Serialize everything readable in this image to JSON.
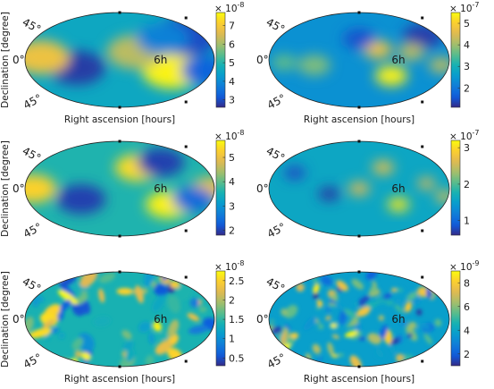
{
  "chart_data": [
    {
      "type": "heatmap",
      "projection": "mollweide",
      "xlabel": "Right ascension [hours]",
      "ylabel": "Declination [degree]",
      "annotations": [
        "45°",
        "0°",
        "6h",
        "45°"
      ],
      "colorbar": {
        "exponent_label": "× 10^-8",
        "ticks": [
          3,
          4,
          5,
          6,
          7
        ],
        "range": [
          2.6,
          7.7
        ]
      },
      "colormap": "parula",
      "blobs": [
        {
          "ra": 6.8,
          "dec": -20,
          "value": 7.6,
          "width": 0.32
        },
        {
          "ra": 2.0,
          "dec": 15,
          "value": 6.2,
          "width": 0.3
        },
        {
          "ra": 9.5,
          "dec": 45,
          "value": 3.0,
          "width": 0.35
        },
        {
          "ra": -5.5,
          "dec": -15,
          "value": 2.8,
          "width": 0.3
        },
        {
          "ra": -10,
          "dec": 5,
          "value": 6.8,
          "width": 0.3
        },
        {
          "ra": 11,
          "dec": -20,
          "value": 3.3,
          "width": 0.25
        },
        {
          "ra": 6,
          "dec": 40,
          "value": 3.8,
          "width": 0.28
        }
      ],
      "base": 4.6
    },
    {
      "type": "heatmap",
      "projection": "mollweide",
      "xlabel": "Right ascension [hours]",
      "ylabel": "",
      "annotations": [
        "45°",
        "0°",
        "6h",
        "45°"
      ],
      "colorbar": {
        "exponent_label": "× 10^-7",
        "ticks": [
          2,
          3,
          4,
          5
        ],
        "range": [
          1.1,
          5.5
        ]
      },
      "colormap": "parula",
      "blobs": [
        {
          "ra": 4.5,
          "dec": -30,
          "value": 5.4,
          "width": 0.18
        },
        {
          "ra": 2.5,
          "dec": 20,
          "value": 4.8,
          "width": 0.16
        },
        {
          "ra": 9.5,
          "dec": 45,
          "value": 1.3,
          "width": 0.22
        },
        {
          "ra": 7,
          "dec": 15,
          "value": 4.2,
          "width": 0.15
        },
        {
          "ra": -6,
          "dec": -10,
          "value": 3.8,
          "width": 0.18
        },
        {
          "ra": 11,
          "dec": -10,
          "value": 4.2,
          "width": 0.14
        },
        {
          "ra": -10,
          "dec": -5,
          "value": 3.6,
          "width": 0.14
        },
        {
          "ra": 0,
          "dec": 40,
          "value": 1.5,
          "width": 0.18
        }
      ],
      "base": 2.4
    },
    {
      "type": "heatmap",
      "projection": "mollweide",
      "xlabel": "",
      "ylabel": "Declination [degree]",
      "annotations": [
        "45°",
        "0°",
        "6h",
        "45°"
      ],
      "colorbar": {
        "exponent_label": "× 10^-8",
        "ticks": [
          2,
          3,
          4,
          5
        ],
        "range": [
          1.8,
          5.7
        ]
      },
      "colormap": "parula",
      "blobs": [
        {
          "ra": 6.5,
          "dec": -30,
          "value": 5.6,
          "width": 0.24
        },
        {
          "ra": 2.5,
          "dec": 40,
          "value": 5.4,
          "width": 0.24
        },
        {
          "ra": 6,
          "dec": 50,
          "value": 2.0,
          "width": 0.25
        },
        {
          "ra": -5,
          "dec": -20,
          "value": 2.0,
          "width": 0.26
        },
        {
          "ra": -11,
          "dec": 0,
          "value": 5.3,
          "width": 0.25
        },
        {
          "ra": 11.5,
          "dec": 0,
          "value": 5.0,
          "width": 0.2
        },
        {
          "ra": 9.5,
          "dec": -20,
          "value": 2.4,
          "width": 0.22
        }
      ],
      "base": 3.6
    },
    {
      "type": "heatmap",
      "projection": "mollweide",
      "xlabel": "",
      "ylabel": "",
      "annotations": [
        "45°",
        "0°",
        "6h",
        "45°"
      ],
      "colorbar": {
        "exponent_label": "× 10^-7",
        "ticks": [
          1,
          2,
          3
        ],
        "range": [
          0.6,
          3.2
        ]
      },
      "colormap": "parula",
      "blobs": [
        {
          "ra": 5.5,
          "dec": -30,
          "value": 3.1,
          "width": 0.12
        },
        {
          "ra": 3.5,
          "dec": 40,
          "value": 2.7,
          "width": 0.12
        },
        {
          "ra": 0,
          "dec": 0,
          "value": 2.6,
          "width": 0.12
        },
        {
          "ra": 9,
          "dec": 10,
          "value": 2.6,
          "width": 0.1
        },
        {
          "ra": -4,
          "dec": -10,
          "value": 0.7,
          "width": 0.12
        },
        {
          "ra": 11.5,
          "dec": -15,
          "value": 2.7,
          "width": 0.1
        },
        {
          "ra": -9,
          "dec": 30,
          "value": 0.8,
          "width": 0.12
        }
      ],
      "base": 1.6
    },
    {
      "type": "heatmap",
      "projection": "mollweide",
      "xlabel": "Right ascension [hours]",
      "ylabel": "Declination [degree]",
      "annotations": [
        "45°",
        "0°",
        "6h",
        "45°"
      ],
      "colorbar": {
        "exponent_label": "× 10^-8",
        "ticks": [
          0.5,
          1,
          1.5,
          2,
          2.5
        ],
        "range": [
          0.3,
          2.75
        ]
      },
      "colormap": "parula",
      "blobs": [],
      "texture": {
        "seed": 5,
        "count": 70,
        "width": 0.045
      },
      "base": 1.4
    },
    {
      "type": "heatmap",
      "projection": "mollweide",
      "xlabel": "Right ascension [hours]",
      "ylabel": "",
      "annotations": [
        "45°",
        "0°",
        "6h",
        "45°"
      ],
      "colorbar": {
        "exponent_label": "× 10^-9",
        "ticks": [
          2,
          4,
          6,
          8
        ],
        "range": [
          1.0,
          9.0
        ]
      },
      "colormap": "parula",
      "blobs": [],
      "texture": {
        "seed": 11,
        "count": 100,
        "width": 0.035
      },
      "base": 3.8
    }
  ]
}
